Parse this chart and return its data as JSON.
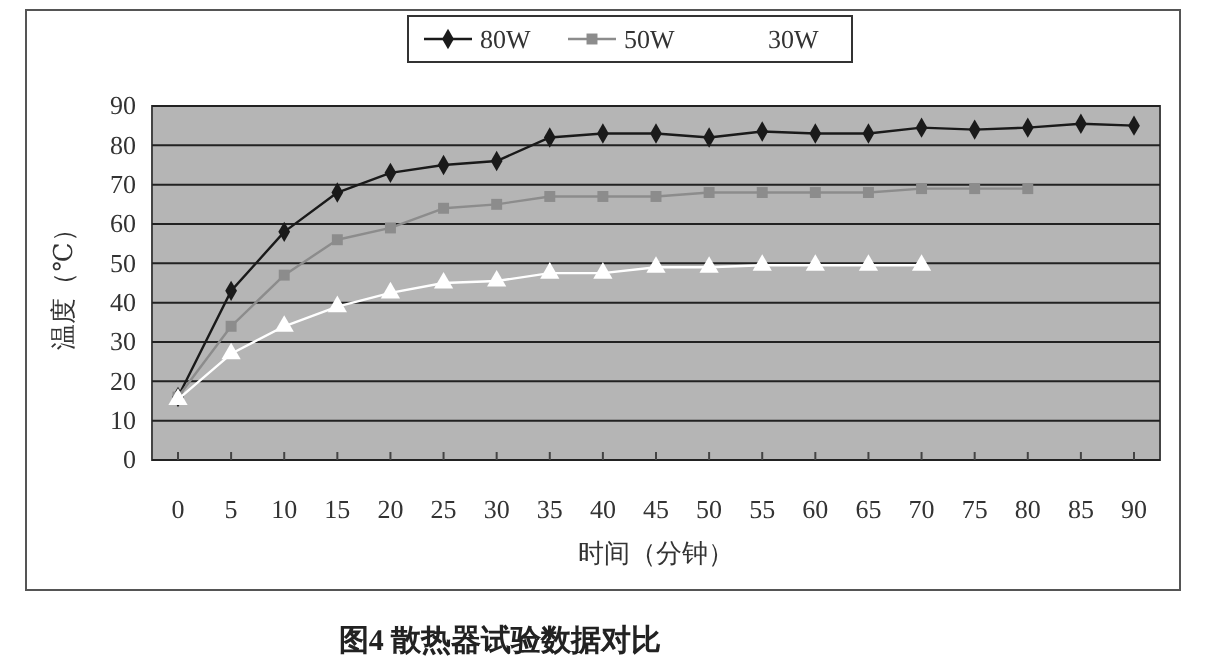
{
  "chart_data": {
    "type": "line",
    "title": "图4 散热器试验数据对比",
    "xlabel": "时间（分钟）",
    "ylabel": "温度（℃）",
    "categories": [
      "0",
      "5",
      "10",
      "15",
      "20",
      "25",
      "30",
      "35",
      "40",
      "45",
      "50",
      "55",
      "60",
      "65",
      "70",
      "75",
      "80",
      "85",
      "90"
    ],
    "series": [
      {
        "name": "80W",
        "color": "#1a1a1a",
        "marker": "diamond",
        "values": [
          16,
          43,
          58,
          68,
          73,
          75,
          76,
          82,
          83,
          83,
          82,
          83.5,
          83,
          83,
          84.5,
          84,
          84.5,
          85.5,
          85
        ]
      },
      {
        "name": "50W",
        "color": "#8c8c8c",
        "marker": "square",
        "values": [
          16,
          34,
          47,
          56,
          59,
          64,
          65,
          67,
          67,
          67,
          68,
          68,
          68,
          68,
          69,
          69,
          69,
          null,
          null
        ]
      },
      {
        "name": "30W",
        "color": "#ffffff",
        "marker": "triangle",
        "values": [
          15.4,
          27,
          34,
          39,
          42.5,
          45,
          45.5,
          47.5,
          47.5,
          49,
          49,
          49.5,
          49.5,
          49.5,
          49.5,
          null,
          null,
          null,
          null
        ]
      }
    ],
    "ylim": [
      0,
      90
    ],
    "yticks": [
      0,
      10,
      20,
      30,
      40,
      50,
      60,
      70,
      80,
      90
    ],
    "grid": "y",
    "legend": "top"
  }
}
